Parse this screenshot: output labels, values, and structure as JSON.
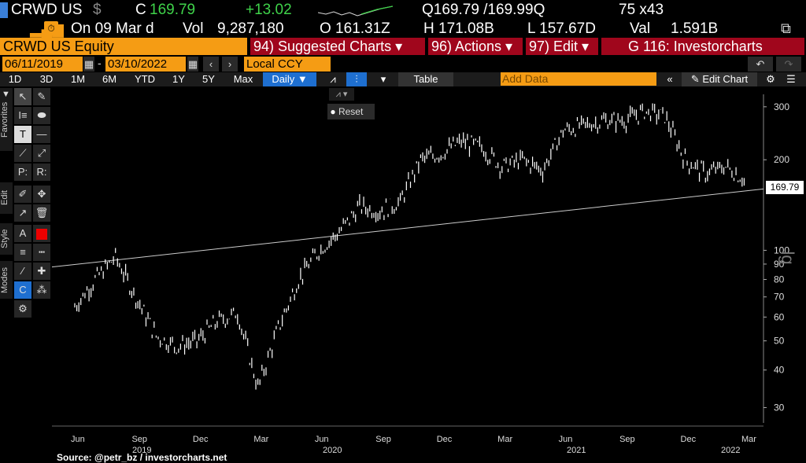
{
  "quote": {
    "ticker": "CRWD US",
    "currency_sym": "$",
    "c_label": "C",
    "last": "169.79",
    "change": "+13.02",
    "bid_ask": "Q169.79 /169.99Q",
    "size": "75 x43",
    "on_date": "On 09 Mar d",
    "vol_label": "Vol",
    "volume": "9,287,180",
    "open": "O 161.31Z",
    "high": "H 171.08B",
    "low": "L 157.67D",
    "val_label": "Val",
    "value": "1.591B"
  },
  "menubar": {
    "security": "CRWD US Equity",
    "suggested": "94) Suggested Charts ▾",
    "actions": "96) Actions ▾",
    "edit": "97) Edit ▾",
    "gfunc": "G 116: Investorcharts"
  },
  "range": {
    "start": "06/11/2019",
    "end": "03/10/2022",
    "ccy": "Local CCY"
  },
  "timeframes": [
    "1D",
    "3D",
    "1M",
    "6M",
    "YTD",
    "1Y",
    "5Y",
    "Max"
  ],
  "period": "Daily ▼",
  "table_label": "Table",
  "add_data_placeholder": "Add Data",
  "edit_chart": "Edit Chart",
  "reset_label": "Reset",
  "side_tabs": [
    "Favorites",
    "Edit",
    "Style",
    "Modes"
  ],
  "price_label": "169.79",
  "source": "Source: @petr_bz / investorcharts.net",
  "lg_label": "lg",
  "chart_data": {
    "type": "line",
    "title": "",
    "scale": "log",
    "y_ticks": [
      30,
      40,
      50,
      60,
      70,
      80,
      90,
      100,
      200,
      300
    ],
    "x_months": [
      "Jun",
      "Sep",
      "Dec",
      "Mar",
      "Jun",
      "Sep",
      "Dec",
      "Mar",
      "Jun",
      "Sep",
      "Dec",
      "Mar"
    ],
    "x_years": [
      "2019",
      "2020",
      "2021",
      "2022"
    ],
    "series": [
      {
        "x": [
          "2019-06",
          "2019-07",
          "2019-08",
          "2019-09",
          "2019-10",
          "2019-11",
          "2019-12",
          "2020-01",
          "2020-02",
          "2020-03",
          "2020-04",
          "2020-05",
          "2020-06",
          "2020-07",
          "2020-08",
          "2020-09",
          "2020-10",
          "2020-11",
          "2020-12",
          "2021-01",
          "2021-02",
          "2021-03",
          "2021-04",
          "2021-05",
          "2021-06",
          "2021-07",
          "2021-08",
          "2021-09",
          "2021-10",
          "2021-11",
          "2021-12",
          "2022-01",
          "2022-02",
          "2022-03"
        ],
        "y": [
          65,
          80,
          95,
          70,
          52,
          48,
          50,
          58,
          62,
          35,
          55,
          80,
          100,
          115,
          140,
          135,
          145,
          200,
          210,
          230,
          220,
          190,
          200,
          185,
          250,
          260,
          270,
          270,
          290,
          280,
          200,
          180,
          190,
          170
        ]
      }
    ],
    "trendline": {
      "from": [
        "2019-06",
        88
      ],
      "to": [
        "2022-03",
        160
      ]
    }
  }
}
